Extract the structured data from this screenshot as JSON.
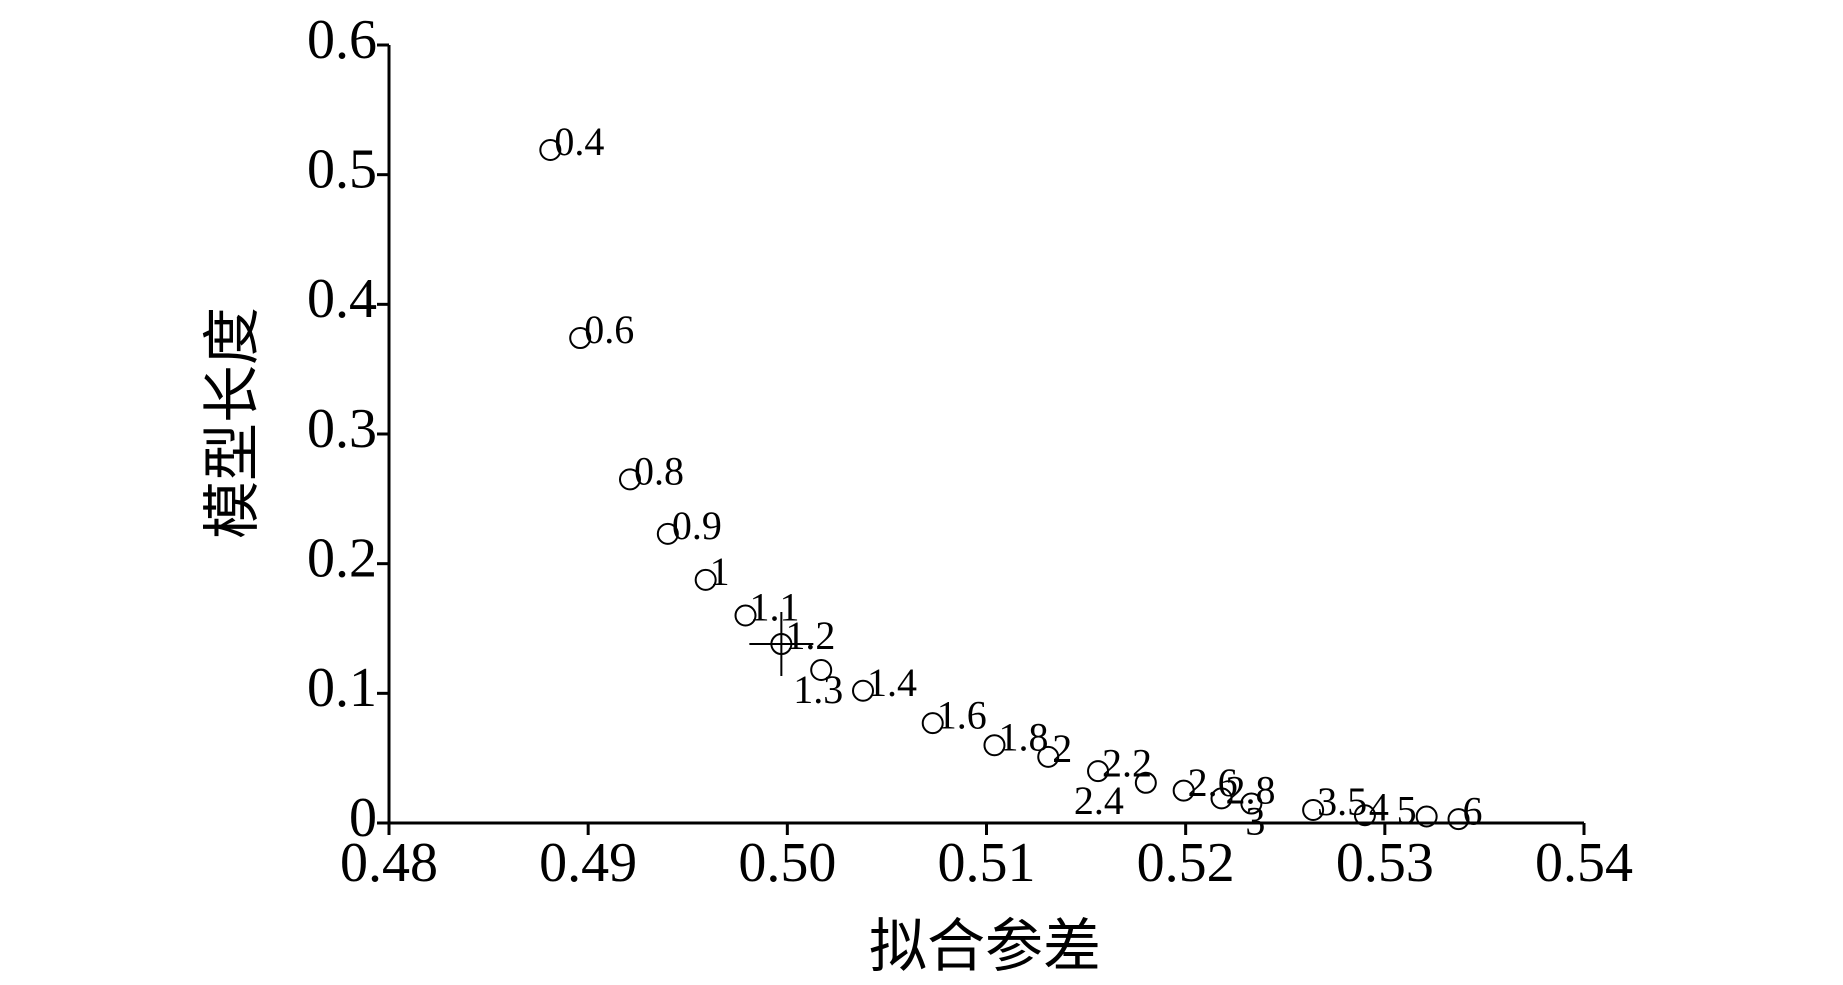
{
  "chart_data": {
    "type": "scatter",
    "x_label": "拟合参差",
    "y_label": "模型长度",
    "x": [
      0.4881,
      0.4896,
      0.4921,
      0.494,
      0.4959,
      0.4979,
      0.4997,
      0.5017,
      0.5038,
      0.5073,
      0.5104,
      0.5131,
      0.5156,
      0.518,
      0.5199,
      0.5218,
      0.5233,
      0.5264,
      0.529,
      0.5321,
      0.5337
    ],
    "values": [
      0.519,
      0.374,
      0.265,
      0.223,
      0.1875,
      0.16,
      0.138,
      0.118,
      0.102,
      0.077,
      0.06,
      0.051,
      0.04,
      0.031,
      0.025,
      0.019,
      0.015,
      0.01,
      0.006,
      0.005,
      0.003
    ],
    "point_labels": [
      "0.4",
      "0.6",
      "0.8",
      "0.9",
      "1",
      "1.1",
      "1.2",
      "1.3",
      "1.4",
      "1.6",
      "1.8",
      "2",
      "2.2",
      "2.4",
      "2.6",
      "2.8",
      "3",
      "3.5",
      "4",
      "5",
      "6"
    ],
    "color": "#000000",
    "xlim": [
      0.48,
      0.54
    ],
    "xticks": [
      {
        "value": 0.48,
        "label": "0.48"
      },
      {
        "value": 0.49,
        "label": "0.49"
      },
      {
        "value": 0.5,
        "label": "0.50"
      },
      {
        "value": 0.51,
        "label": "0.51"
      },
      {
        "value": 0.52,
        "label": "0.52"
      },
      {
        "value": 0.53,
        "label": "0.53"
      },
      {
        "value": 0.54,
        "label": "0.54"
      }
    ],
    "ylim": [
      0,
      0.6
    ],
    "yticks": [
      0,
      0.1,
      0.2,
      0.3,
      0.4,
      0.5,
      0.6
    ],
    "grid": false
  }
}
